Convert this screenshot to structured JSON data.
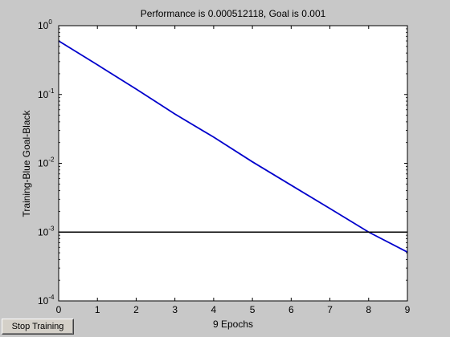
{
  "chart_data": {
    "type": "line",
    "title": "Performance is 0.000512118, Goal is 0.001",
    "xlabel": "9 Epochs",
    "ylabel": "Training-Blue  Goal-Black",
    "yscale": "log",
    "xlim": [
      0,
      9
    ],
    "ylim": [
      0.0001,
      1
    ],
    "grid": false,
    "x_ticks": [
      0,
      1,
      2,
      3,
      4,
      5,
      6,
      7,
      8,
      9
    ],
    "y_ticks": [
      {
        "value": 0.0001,
        "base": "10",
        "exp": "-4"
      },
      {
        "value": 0.001,
        "base": "10",
        "exp": "-3"
      },
      {
        "value": 0.01,
        "base": "10",
        "exp": "-2"
      },
      {
        "value": 0.1,
        "base": "10",
        "exp": "-1"
      },
      {
        "value": 1,
        "base": "10",
        "exp": "0"
      }
    ],
    "series": [
      {
        "color": "#0000cc",
        "x": [
          0,
          1,
          2,
          3,
          4,
          5,
          6,
          7,
          8,
          9
        ],
        "y": [
          0.6,
          0.27,
          0.12,
          0.052,
          0.024,
          0.0105,
          0.0048,
          0.0022,
          0.001,
          0.000512
        ]
      },
      {
        "color": "#000000",
        "x": [
          0,
          9
        ],
        "y": [
          0.001,
          0.001
        ]
      }
    ]
  },
  "controls": {
    "stop_button_label": "Stop Training"
  }
}
